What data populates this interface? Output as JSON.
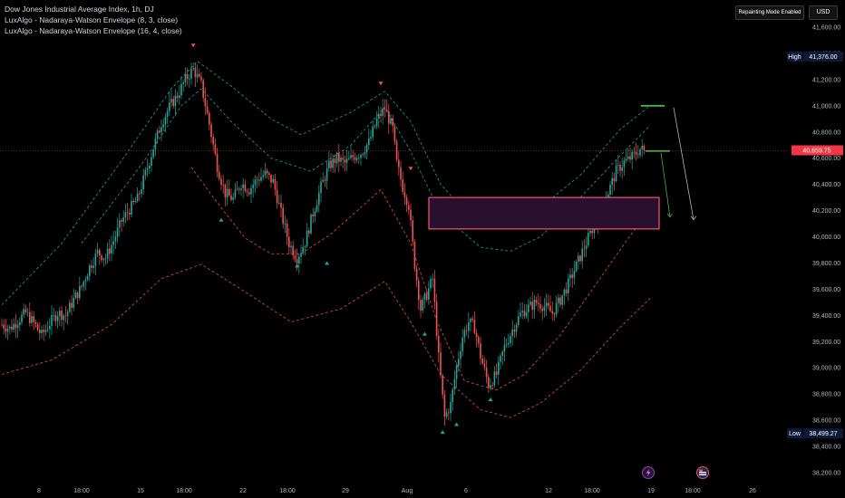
{
  "legend": {
    "title": "Dow Jones Industrial Average Index, 1h, DJ",
    "indicator_1": "LuxAlgo - Nadaraya-Watson Envelope (8, 3, close)",
    "indicator_2": "LuxAlgo - Nadaraya-Watson Envelope (16, 4, close)"
  },
  "toolbar": {
    "repainting_label": "Repainting Mode Enabled",
    "currency_label": "USD"
  },
  "colors": {
    "background": "#000000",
    "up_candle": "#26a69a",
    "down_candle": "#ef5350",
    "envelope_upper": "#26a69a",
    "envelope_lower": "#ef5350",
    "zone_fill": "#2a0f2e",
    "zone_border": "#ef5a6f",
    "current_price": "#f23645",
    "high_low_badge": "#0f1a3a",
    "projection": "#4caf50"
  },
  "chart_data": {
    "type": "candlestick",
    "title": "Dow Jones Industrial Average Index, 1h, DJ",
    "y_ticks": [
      41600,
      41400,
      41200,
      41000,
      40800,
      40600,
      40400,
      40200,
      40000,
      39800,
      39600,
      39400,
      39200,
      39000,
      38800,
      38600,
      38400,
      38200
    ],
    "ylim": [
      38200,
      41600
    ],
    "x_tick_labels": [
      "8",
      "18:00",
      "15",
      "18:00",
      "22",
      "18:00",
      "29",
      "Aug",
      "6",
      "12",
      "18:00",
      "19",
      "18:00",
      "26"
    ],
    "price_markers": {
      "high_label": "High",
      "high_value": "41,376.00",
      "current_value": "40,659.75",
      "low_label": "Low",
      "low_value": "38,499.27"
    },
    "trend_path": [
      [
        0,
        39330
      ],
      [
        4,
        39300
      ],
      [
        8,
        39360
      ],
      [
        12,
        39420
      ],
      [
        16,
        39340
      ],
      [
        20,
        39250
      ],
      [
        24,
        39340
      ],
      [
        28,
        39420
      ],
      [
        32,
        39400
      ],
      [
        36,
        39520
      ],
      [
        40,
        39620
      ],
      [
        44,
        39770
      ],
      [
        48,
        39880
      ],
      [
        52,
        39840
      ],
      [
        56,
        39970
      ],
      [
        60,
        40120
      ],
      [
        64,
        40210
      ],
      [
        68,
        40290
      ],
      [
        72,
        40480
      ],
      [
        76,
        40680
      ],
      [
        80,
        40870
      ],
      [
        84,
        40990
      ],
      [
        88,
        41080
      ],
      [
        92,
        41200
      ],
      [
        96,
        41280
      ],
      [
        100,
        41160
      ],
      [
        104,
        40860
      ],
      [
        108,
        40540
      ],
      [
        112,
        40330
      ],
      [
        116,
        40290
      ],
      [
        120,
        40410
      ],
      [
        124,
        40360
      ],
      [
        128,
        40440
      ],
      [
        132,
        40480
      ],
      [
        136,
        40420
      ],
      [
        140,
        40180
      ],
      [
        144,
        39950
      ],
      [
        148,
        39840
      ],
      [
        152,
        39960
      ],
      [
        156,
        40180
      ],
      [
        160,
        40380
      ],
      [
        164,
        40540
      ],
      [
        168,
        40600
      ],
      [
        172,
        40560
      ],
      [
        176,
        40610
      ],
      [
        180,
        40640
      ],
      [
        184,
        40720
      ],
      [
        188,
        40890
      ],
      [
        192,
        40980
      ],
      [
        196,
        40820
      ],
      [
        198,
        40560
      ],
      [
        201,
        40380
      ],
      [
        204,
        40240
      ],
      [
        207,
        39790
      ],
      [
        210,
        39450
      ],
      [
        213,
        39560
      ],
      [
        216,
        39680
      ],
      [
        219,
        39080
      ],
      [
        222,
        38620
      ],
      [
        225,
        38720
      ],
      [
        228,
        39010
      ],
      [
        231,
        39240
      ],
      [
        234,
        39350
      ],
      [
        237,
        39310
      ],
      [
        240,
        39090
      ],
      [
        244,
        38870
      ],
      [
        248,
        38950
      ],
      [
        252,
        39160
      ],
      [
        256,
        39290
      ],
      [
        260,
        39410
      ],
      [
        264,
        39460
      ],
      [
        268,
        39500
      ],
      [
        272,
        39470
      ],
      [
        276,
        39420
      ],
      [
        280,
        39520
      ],
      [
        284,
        39640
      ],
      [
        288,
        39780
      ],
      [
        292,
        39920
      ],
      [
        296,
        40060
      ],
      [
        300,
        40160
      ],
      [
        304,
        40340
      ],
      [
        308,
        40500
      ],
      [
        312,
        40570
      ],
      [
        316,
        40610
      ],
      [
        320,
        40670
      ],
      [
        322,
        40660
      ]
    ],
    "envelopes": {
      "outer_upper": [
        [
          0,
          39480
        ],
        [
          30,
          39950
        ],
        [
          60,
          40580
        ],
        [
          85,
          41130
        ],
        [
          98,
          41340
        ],
        [
          115,
          41150
        ],
        [
          135,
          40900
        ],
        [
          150,
          40780
        ],
        [
          175,
          40950
        ],
        [
          192,
          41110
        ],
        [
          205,
          40880
        ],
        [
          220,
          40400
        ],
        [
          235,
          40150
        ],
        [
          250,
          40120
        ],
        [
          268,
          40200
        ],
        [
          290,
          40470
        ],
        [
          310,
          40820
        ],
        [
          325,
          41000
        ]
      ],
      "inner_upper": [
        [
          40,
          39950
        ],
        [
          70,
          40550
        ],
        [
          90,
          41000
        ],
        [
          100,
          41130
        ],
        [
          115,
          40880
        ],
        [
          135,
          40600
        ],
        [
          155,
          40500
        ],
        [
          175,
          40700
        ],
        [
          192,
          40990
        ],
        [
          205,
          40650
        ],
        [
          220,
          40180
        ],
        [
          240,
          39920
        ],
        [
          255,
          39890
        ],
        [
          270,
          40000
        ],
        [
          290,
          40300
        ],
        [
          310,
          40620
        ],
        [
          325,
          40850
        ]
      ],
      "inner_lower": [
        [
          95,
          40530
        ],
        [
          108,
          40260
        ],
        [
          122,
          39990
        ],
        [
          135,
          39870
        ],
        [
          150,
          39870
        ],
        [
          165,
          40020
        ],
        [
          190,
          40360
        ],
        [
          205,
          39950
        ],
        [
          218,
          39360
        ],
        [
          232,
          38900
        ],
        [
          248,
          38830
        ],
        [
          262,
          38950
        ],
        [
          280,
          39250
        ],
        [
          298,
          39640
        ],
        [
          315,
          40010
        ],
        [
          325,
          40200
        ]
      ],
      "outer_lower": [
        [
          0,
          38950
        ],
        [
          25,
          39060
        ],
        [
          55,
          39330
        ],
        [
          80,
          39680
        ],
        [
          100,
          39790
        ],
        [
          120,
          39600
        ],
        [
          145,
          39350
        ],
        [
          170,
          39450
        ],
        [
          192,
          39660
        ],
        [
          205,
          39350
        ],
        [
          220,
          38950
        ],
        [
          240,
          38680
        ],
        [
          255,
          38620
        ],
        [
          270,
          38730
        ],
        [
          290,
          38980
        ],
        [
          310,
          39310
        ],
        [
          325,
          39530
        ]
      ]
    },
    "signals": {
      "sell": [
        [
          96,
          41460
        ],
        [
          190,
          41170
        ],
        [
          205,
          40520
        ]
      ],
      "buy": [
        [
          110,
          40130
        ],
        [
          148,
          39780
        ],
        [
          163,
          39800
        ],
        [
          212,
          39260
        ],
        [
          221,
          38510
        ],
        [
          228,
          38570
        ],
        [
          245,
          38760
        ]
      ]
    },
    "zone": {
      "top": 40300,
      "bottom": 40060
    },
    "projections": {
      "upper_line": {
        "price": 41000
      },
      "current_line": {
        "price": 40655
      },
      "arrow_a_target": 40150,
      "arrow_b_target": 40130
    }
  }
}
